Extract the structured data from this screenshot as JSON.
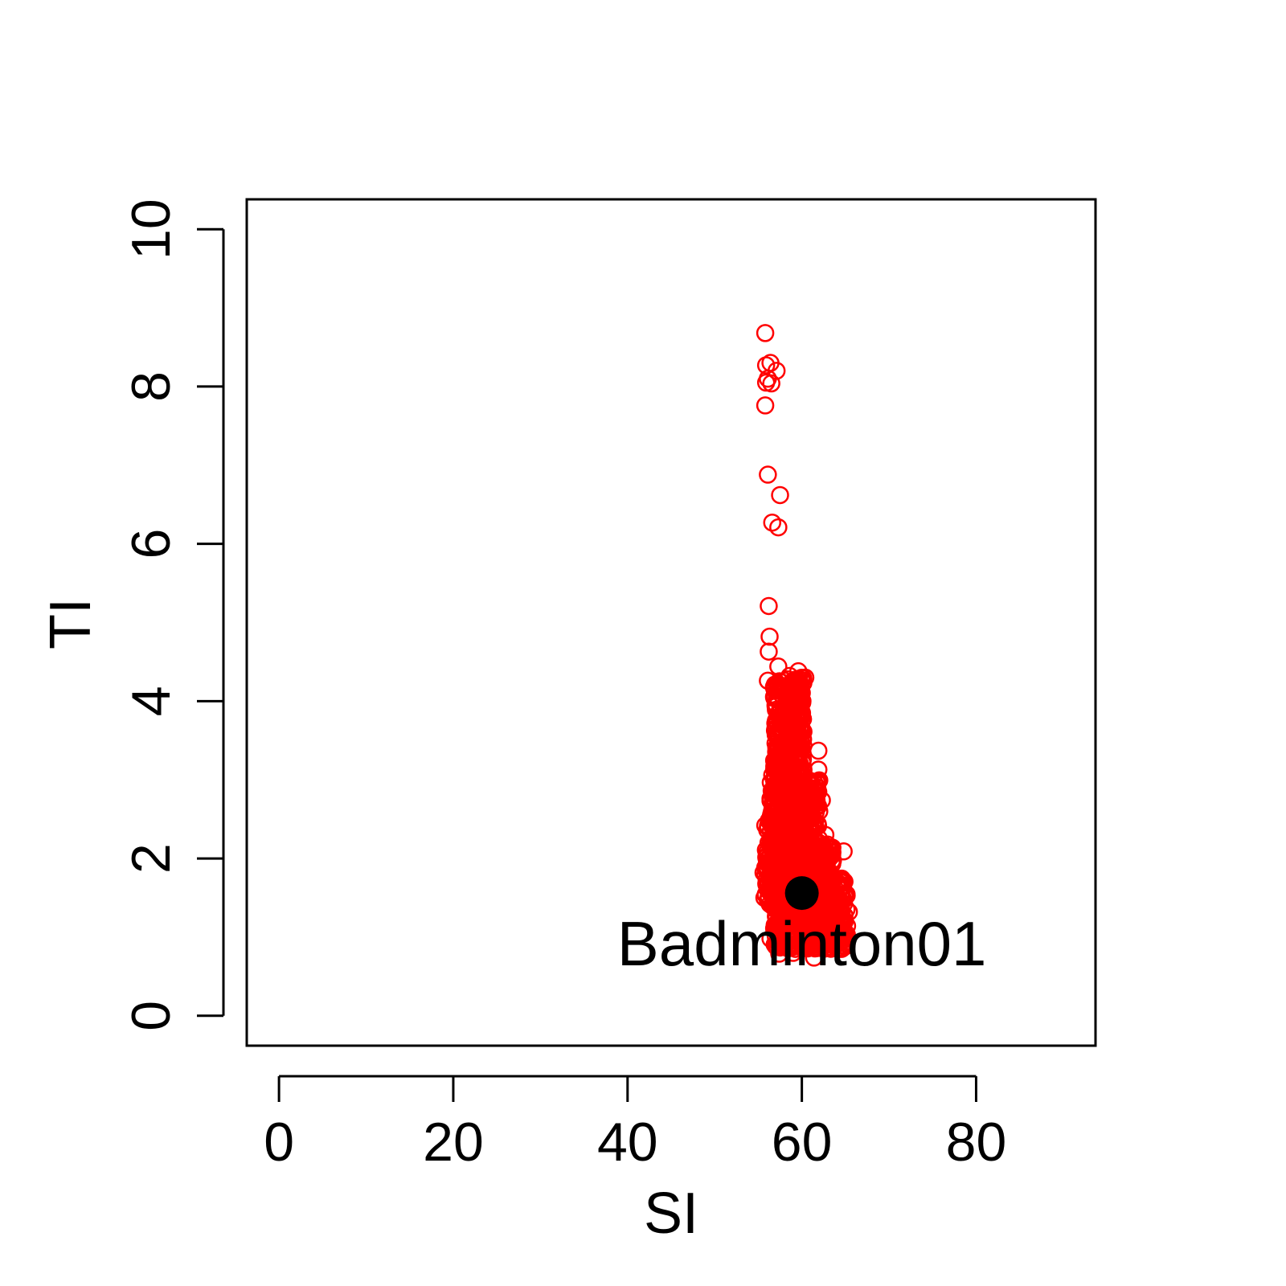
{
  "chart_data": {
    "type": "scatter",
    "title": "",
    "xlabel": "SI",
    "ylabel": "TI",
    "xlim": [
      -3.7,
      93.7
    ],
    "ylim": [
      -0.38,
      10.38
    ],
    "x_ticks": [
      "0",
      "20",
      "40",
      "60",
      "80"
    ],
    "y_ticks": [
      "0",
      "2",
      "4",
      "6",
      "8",
      "10"
    ],
    "grid": false,
    "legend": "none",
    "series": [
      {
        "marker": "open-circle",
        "color": "#ff0000",
        "points": [
          [
            55.8,
            8.68
          ],
          [
            55.9,
            8.27
          ],
          [
            56.4,
            8.3
          ],
          [
            57.1,
            8.2
          ],
          [
            55.9,
            8.05
          ],
          [
            56.5,
            8.04
          ],
          [
            56.1,
            8.1
          ],
          [
            55.8,
            7.76
          ],
          [
            56.1,
            6.88
          ],
          [
            57.5,
            6.62
          ],
          [
            56.6,
            6.27
          ],
          [
            57.3,
            6.21
          ],
          [
            56.2,
            5.21
          ],
          [
            56.3,
            4.82
          ],
          [
            56.2,
            4.63
          ],
          [
            57.3,
            4.44
          ],
          [
            59.6,
            4.38
          ],
          [
            56.1,
            4.26
          ],
          [
            58.6,
            4.32
          ],
          [
            60.4,
            4.3
          ],
          [
            58.0,
            4.18
          ],
          [
            59.1,
            4.2
          ],
          [
            61.9,
            3.37
          ],
          [
            61.9,
            3.13
          ],
          [
            56.6,
            3.06
          ],
          [
            62.3,
            2.74
          ],
          [
            62.0,
            2.6
          ],
          [
            61.3,
            2.76
          ],
          [
            56.4,
            2.76
          ],
          [
            62.7,
            2.3
          ],
          [
            56.2,
            2.48
          ],
          [
            55.8,
            2.42
          ],
          [
            64.8,
            2.09
          ],
          [
            63.4,
            2.14
          ],
          [
            64.0,
            1.7
          ],
          [
            64.9,
            1.52
          ],
          [
            65.4,
            1.32
          ],
          [
            61.4,
            0.74
          ],
          [
            57.4,
            0.79
          ],
          [
            59.0,
            0.8
          ],
          [
            55.6,
            1.82
          ],
          [
            55.7,
            1.5
          ],
          [
            62.8,
            1.0
          ],
          [
            64.4,
            0.98
          ],
          [
            56.4,
            0.98
          ],
          [
            63.2,
            2.01
          ]
        ]
      },
      {
        "marker": "filled-circle",
        "color": "#000000",
        "points": [
          [
            60.0,
            1.56
          ]
        ]
      }
    ],
    "annotation": {
      "text": "Badminton01",
      "x": 60.0,
      "y": 0.93
    }
  }
}
